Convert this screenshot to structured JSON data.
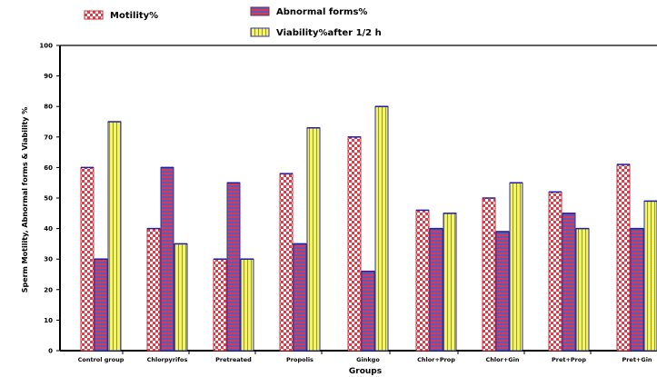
{
  "chart_data": {
    "type": "bar",
    "xlabel": "Groups",
    "ylabel": "Sperm Motility, Abnormal forms & Viability %",
    "ylim": [
      0,
      100
    ],
    "yticks": [
      0,
      10,
      20,
      30,
      40,
      50,
      60,
      70,
      80,
      90,
      100
    ],
    "grid": false,
    "legend_position": "top-left",
    "categories": [
      "Control group",
      "Chlorpyrifos",
      "Pretreated",
      "Propolis",
      "Ginkgo",
      "Chlor+Prop",
      "Chlor+Gin",
      "Pret+Prop",
      "Pret+Gin"
    ],
    "series": [
      {
        "name": "Motility%",
        "values": [
          60,
          40,
          30,
          58,
          70,
          46,
          50,
          52,
          61
        ]
      },
      {
        "name": "Abnormal forms%",
        "values": [
          30,
          60,
          55,
          35,
          26,
          40,
          39,
          45,
          40
        ]
      },
      {
        "name": "Viability%after 1/2 h",
        "values": [
          75,
          35,
          30,
          73,
          80,
          45,
          55,
          40,
          49
        ]
      }
    ],
    "colors": {
      "motility": "#e23c48",
      "abnormal": "#8a2846",
      "viability": "#ecec4e"
    }
  }
}
